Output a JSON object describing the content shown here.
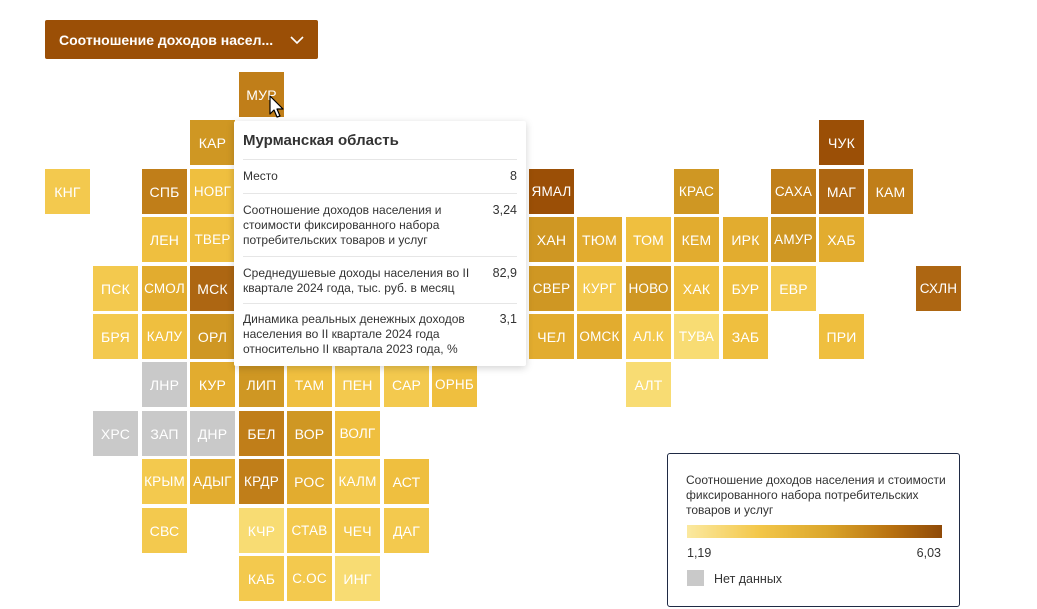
{
  "dropdown": {
    "label": "Соотношение доходов насел..."
  },
  "colors": {
    "l1": "#f8dc73",
    "l2": "#f3c94e",
    "l3": "#efbf3f",
    "l4": "#e2ac2f",
    "l5": "#cf9723",
    "l6": "#c07e19",
    "l7": "#ad6612",
    "l8": "#9b4f06",
    "nodata": "#c9c9c9",
    "pale": "#f6d98a"
  },
  "regions": [
    {
      "code": "МУР",
      "col": 5,
      "row": 0,
      "shade": "l6"
    },
    {
      "code": "КАР",
      "col": 4,
      "row": 1,
      "shade": "l5"
    },
    {
      "code": "ЧУК",
      "col": 17,
      "row": 1,
      "shade": "l8"
    },
    {
      "code": "КНГ",
      "col": 1,
      "row": 2,
      "shade": "l2"
    },
    {
      "code": "СПБ",
      "col": 3,
      "row": 2,
      "shade": "l6"
    },
    {
      "code": "НОВГ",
      "col": 4,
      "row": 2,
      "shade": "l3"
    },
    {
      "code": "ЯМАЛ",
      "col": 11,
      "row": 2,
      "shade": "l8"
    },
    {
      "code": "КРАС",
      "col": 14,
      "row": 2,
      "shade": "l5"
    },
    {
      "code": "САХА",
      "col": 16,
      "row": 2,
      "shade": "l6"
    },
    {
      "code": "МАГ",
      "col": 17,
      "row": 2,
      "shade": "l7"
    },
    {
      "code": "КАМ",
      "col": 18,
      "row": 2,
      "shade": "l6"
    },
    {
      "code": "ЛЕН",
      "col": 3,
      "row": 3,
      "shade": "l3"
    },
    {
      "code": "ТВЕР",
      "col": 4,
      "row": 3,
      "shade": "l3"
    },
    {
      "code": "ХАН",
      "col": 11,
      "row": 3,
      "shade": "l5"
    },
    {
      "code": "ТЮМ",
      "col": 12,
      "row": 3,
      "shade": "l4"
    },
    {
      "code": "ТОМ",
      "col": 13,
      "row": 3,
      "shade": "l3"
    },
    {
      "code": "КЕМ",
      "col": 14,
      "row": 3,
      "shade": "l4"
    },
    {
      "code": "ИРК",
      "col": 15,
      "row": 3,
      "shade": "l4"
    },
    {
      "code": "АМУР",
      "col": 16,
      "row": 3,
      "shade": "l5"
    },
    {
      "code": "ХАБ",
      "col": 17,
      "row": 3,
      "shade": "l4"
    },
    {
      "code": "ПСК",
      "col": 2,
      "row": 4,
      "shade": "l2"
    },
    {
      "code": "СМОЛ",
      "col": 3,
      "row": 4,
      "shade": "l4"
    },
    {
      "code": "МСК",
      "col": 4,
      "row": 4,
      "shade": "l7"
    },
    {
      "code": "СВЕР",
      "col": 11,
      "row": 4,
      "shade": "l5"
    },
    {
      "code": "КУРГ",
      "col": 12,
      "row": 4,
      "shade": "l2"
    },
    {
      "code": "НОВО",
      "col": 13,
      "row": 4,
      "shade": "l5"
    },
    {
      "code": "ХАК",
      "col": 14,
      "row": 4,
      "shade": "l3"
    },
    {
      "code": "БУР",
      "col": 15,
      "row": 4,
      "shade": "l3"
    },
    {
      "code": "ЕВР",
      "col": 16,
      "row": 4,
      "shade": "l2"
    },
    {
      "code": "СХЛН",
      "col": 19,
      "row": 4,
      "shade": "l7"
    },
    {
      "code": "БРЯ",
      "col": 2,
      "row": 5,
      "shade": "l2"
    },
    {
      "code": "КАЛУ",
      "col": 3,
      "row": 5,
      "shade": "l3"
    },
    {
      "code": "ОРЛ",
      "col": 4,
      "row": 5,
      "shade": "l5"
    },
    {
      "code": "ЧЕЛ",
      "col": 11,
      "row": 5,
      "shade": "l4"
    },
    {
      "code": "ОМСК",
      "col": 12,
      "row": 5,
      "shade": "l4"
    },
    {
      "code": "АЛ.К",
      "col": 13,
      "row": 5,
      "shade": "l2"
    },
    {
      "code": "ТУВА",
      "col": 14,
      "row": 5,
      "shade": "l1"
    },
    {
      "code": "ЗАБ",
      "col": 15,
      "row": 5,
      "shade": "l3"
    },
    {
      "code": "ПРИ",
      "col": 17,
      "row": 5,
      "shade": "l3"
    },
    {
      "code": "ЛНР",
      "col": 3,
      "row": 6,
      "shade": "nodata"
    },
    {
      "code": "КУР",
      "col": 4,
      "row": 6,
      "shade": "l4"
    },
    {
      "code": "ЛИП",
      "col": 5,
      "row": 6,
      "shade": "l5"
    },
    {
      "code": "ТАМ",
      "col": 6,
      "row": 6,
      "shade": "l3"
    },
    {
      "code": "ПЕН",
      "col": 7,
      "row": 6,
      "shade": "l2"
    },
    {
      "code": "САР",
      "col": 8,
      "row": 6,
      "shade": "l2"
    },
    {
      "code": "ОРНБ",
      "col": 9,
      "row": 6,
      "shade": "l3"
    },
    {
      "code": "АЛТ",
      "col": 13,
      "row": 6,
      "shade": "l1"
    },
    {
      "code": "ХРС",
      "col": 2,
      "row": 7,
      "shade": "nodata"
    },
    {
      "code": "ЗАП",
      "col": 3,
      "row": 7,
      "shade": "nodata"
    },
    {
      "code": "ДНР",
      "col": 4,
      "row": 7,
      "shade": "nodata"
    },
    {
      "code": "БЕЛ",
      "col": 5,
      "row": 7,
      "shade": "l6"
    },
    {
      "code": "ВОР",
      "col": 6,
      "row": 7,
      "shade": "l5"
    },
    {
      "code": "ВОЛГ",
      "col": 7,
      "row": 7,
      "shade": "l3"
    },
    {
      "code": "КРЫМ",
      "col": 3,
      "row": 8,
      "shade": "l2"
    },
    {
      "code": "АДЫГ",
      "col": 4,
      "row": 8,
      "shade": "l4"
    },
    {
      "code": "КРДР",
      "col": 5,
      "row": 8,
      "shade": "l6"
    },
    {
      "code": "РОС",
      "col": 6,
      "row": 8,
      "shade": "l4"
    },
    {
      "code": "КАЛМ",
      "col": 7,
      "row": 8,
      "shade": "l2"
    },
    {
      "code": "АСТ",
      "col": 8,
      "row": 8,
      "shade": "l3"
    },
    {
      "code": "СВС",
      "col": 3,
      "row": 9,
      "shade": "l2"
    },
    {
      "code": "КЧР",
      "col": 5,
      "row": 9,
      "shade": "l1"
    },
    {
      "code": "СТАВ",
      "col": 6,
      "row": 9,
      "shade": "l2"
    },
    {
      "code": "ЧЕЧ",
      "col": 7,
      "row": 9,
      "shade": "l2"
    },
    {
      "code": "ДАГ",
      "col": 8,
      "row": 9,
      "shade": "l2"
    },
    {
      "code": "КАБ",
      "col": 5,
      "row": 10,
      "shade": "l2"
    },
    {
      "code": "С.ОС",
      "col": 6,
      "row": 10,
      "shade": "l2"
    },
    {
      "code": "ИНГ",
      "col": 7,
      "row": 10,
      "shade": "l1"
    }
  ],
  "tooltip": {
    "title": "Мурманская область",
    "rows": [
      {
        "label": "Место",
        "value": "8"
      },
      {
        "label": "Соотношение доходов населения и стоимости фиксированного набора потребительских товаров и услуг",
        "value": "3,24"
      },
      {
        "label": "Среднедушевые доходы населения во II квартале 2024 года, тыс. руб. в месяц",
        "value": "82,9"
      },
      {
        "label": "Динамика реальных денежных доходов населения во II квартале 2024 года относительно II квартала 2023 года, %",
        "value": "3,1"
      }
    ]
  },
  "legend": {
    "title": "Соотношение доходов населения и стоимости фиксированного набора потребительских товаров и услуг",
    "min": "1,19",
    "max": "6,03",
    "nodata_label": "Нет данных"
  }
}
